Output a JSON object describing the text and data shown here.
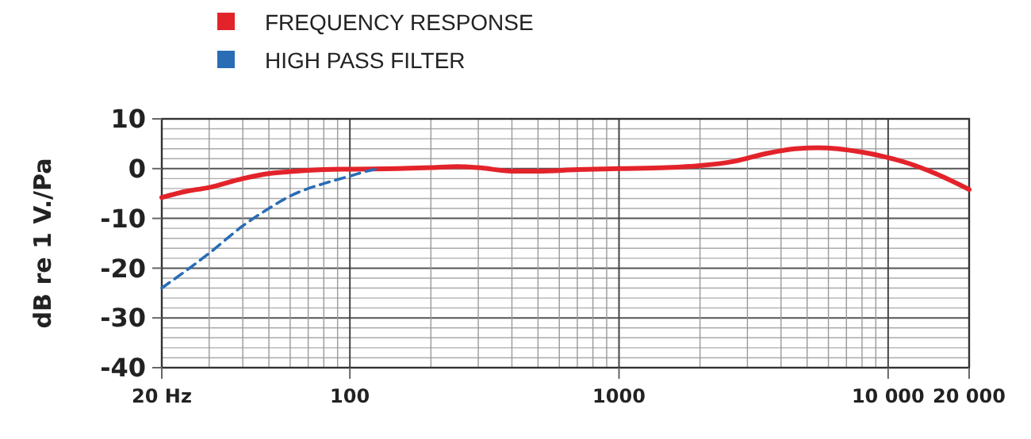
{
  "chart_data": {
    "type": "line",
    "ylabel": "dB re 1 V./Pa",
    "log": "x",
    "grid": true,
    "legend": "top left",
    "xlim": [
      20,
      20000
    ],
    "ylim": [
      -40,
      10
    ],
    "xticks": [
      {
        "value": 20,
        "label": "20 Hz"
      },
      {
        "value": 30,
        "label": null
      },
      {
        "value": 40,
        "label": null
      },
      {
        "value": 50,
        "label": null
      },
      {
        "value": 60,
        "label": null
      },
      {
        "value": 70,
        "label": null
      },
      {
        "value": 80,
        "label": null
      },
      {
        "value": 90,
        "label": null
      },
      100,
      {
        "value": 200,
        "label": null
      },
      {
        "value": 300,
        "label": null
      },
      {
        "value": 400,
        "label": null
      },
      {
        "value": 500,
        "label": null
      },
      {
        "value": 600,
        "label": null
      },
      {
        "value": 700,
        "label": null
      },
      {
        "value": 800,
        "label": null
      },
      {
        "value": 900,
        "label": null
      },
      1000,
      {
        "value": 2000,
        "label": null
      },
      {
        "value": 3000,
        "label": null
      },
      {
        "value": 4000,
        "label": null
      },
      {
        "value": 5000,
        "label": null
      },
      {
        "value": 6000,
        "label": null
      },
      {
        "value": 7000,
        "label": null
      },
      {
        "value": 8000,
        "label": null
      },
      {
        "value": 9000,
        "label": null
      },
      {
        "value": 10000,
        "label": "10 000"
      },
      {
        "value": 20000,
        "label": "20 000"
      }
    ],
    "yticks": [
      -40,
      {
        "value": -38,
        "label": null
      },
      {
        "value": -36,
        "label": null
      },
      {
        "value": -34,
        "label": null
      },
      {
        "value": -32,
        "label": null
      },
      -30,
      {
        "value": -28,
        "label": null
      },
      {
        "value": -26,
        "label": null
      },
      {
        "value": -24,
        "label": null
      },
      {
        "value": -22,
        "label": null
      },
      -20,
      {
        "value": -18,
        "label": null
      },
      {
        "value": -16,
        "label": null
      },
      {
        "value": -14,
        "label": null
      },
      {
        "value": -12,
        "label": null
      },
      -10,
      {
        "value": -8,
        "label": null
      },
      {
        "value": -6,
        "label": null
      },
      {
        "value": -4,
        "label": null
      },
      {
        "value": -2,
        "label": null
      },
      0,
      {
        "value": 2,
        "label": null
      },
      {
        "value": 4,
        "label": null
      },
      {
        "value": 6,
        "label": null
      },
      {
        "value": 8,
        "label": null
      },
      10
    ],
    "series": [
      {
        "name": "FREQUENCY RESPONSE",
        "color": "#e3232a",
        "line_style": "solid",
        "x": [
          20,
          25,
          30,
          40,
          50,
          60,
          80,
          100,
          150,
          200,
          250,
          300,
          400,
          500,
          700,
          1000,
          1500,
          2000,
          2700,
          3500,
          4500,
          5500,
          6500,
          8000,
          9500,
          12000,
          15000,
          20000
        ],
        "values": [
          -5.8,
          -4.5,
          -3.8,
          -2,
          -1,
          -0.6,
          -0.2,
          -0.1,
          0,
          0.2,
          0.4,
          0.2,
          -0.5,
          -0.5,
          -0.2,
          0,
          0.2,
          0.6,
          1.5,
          3,
          4,
          4.2,
          4,
          3.3,
          2.5,
          1,
          -1,
          -4.2
        ]
      },
      {
        "name": "HIGH PASS FILTER",
        "color": "#2a6db5",
        "line_style": "dashed",
        "x": [
          20,
          30,
          40,
          50,
          60,
          70,
          80,
          100,
          120,
          130
        ],
        "values": [
          -24,
          -17,
          -11.5,
          -8,
          -5.5,
          -4,
          -3,
          -1.5,
          -0.3,
          0
        ]
      }
    ]
  }
}
